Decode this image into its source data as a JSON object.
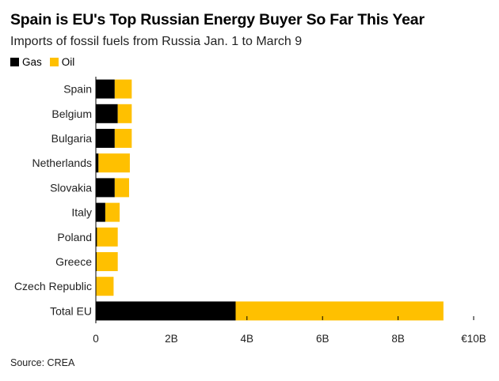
{
  "header": {
    "title": "Spain is EU's Top Russian Energy Buyer So Far This Year",
    "subtitle": "Imports of fossil fuels from Russia Jan. 1 to March 9"
  },
  "legend": [
    {
      "label": "Gas",
      "color": "#000000"
    },
    {
      "label": "Oil",
      "color": "#FFC000"
    }
  ],
  "footer": {
    "source": "Source: CREA"
  },
  "chart_data": {
    "type": "bar",
    "orientation": "horizontal",
    "stacked": true,
    "categories": [
      "Spain",
      "Belgium",
      "Bulgaria",
      "Netherlands",
      "Slovakia",
      "Italy",
      "Poland",
      "Greece",
      "Czech Republic",
      "Total EU"
    ],
    "series": [
      {
        "name": "Gas",
        "color": "#000000",
        "values": [
          0.5,
          0.58,
          0.5,
          0.07,
          0.5,
          0.25,
          0.03,
          0.02,
          0.0,
          3.7
        ]
      },
      {
        "name": "Oil",
        "color": "#FFC000",
        "values": [
          0.45,
          0.37,
          0.45,
          0.83,
          0.38,
          0.38,
          0.55,
          0.56,
          0.47,
          5.5
        ]
      }
    ],
    "xlim": [
      0,
      10
    ],
    "xticks": [
      0,
      2,
      4,
      6,
      8,
      10
    ],
    "xtick_labels": [
      "0",
      "2B",
      "4B",
      "6B",
      "8B",
      "€10B"
    ],
    "grid": false,
    "legend_position": "top-left"
  }
}
